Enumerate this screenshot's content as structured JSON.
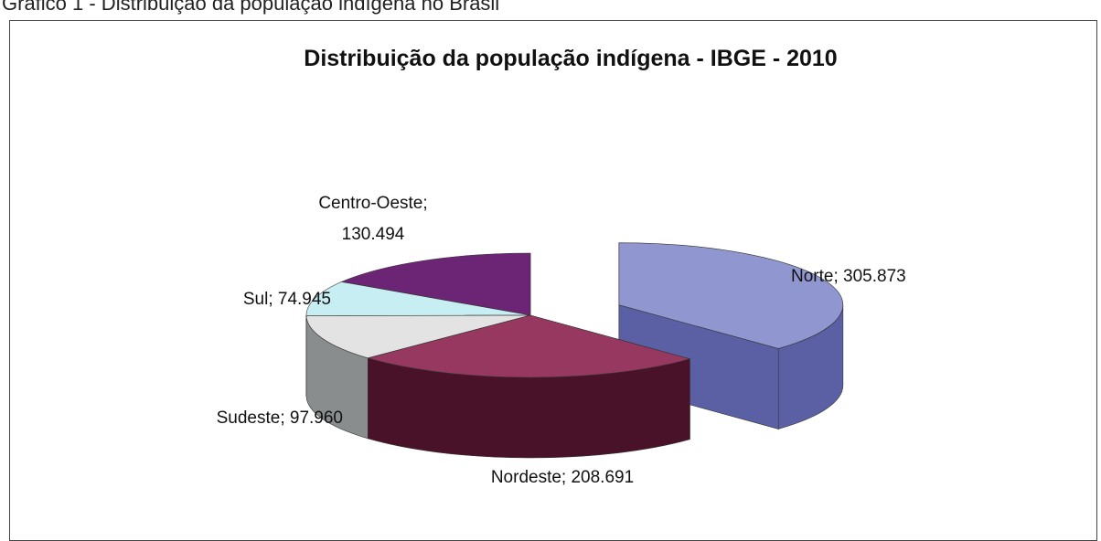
{
  "caption": "Gráfico 1 - Distribuição da população indígena no Brasil",
  "chart_data": {
    "type": "pie",
    "title": "Distribuição da população indígena - IBGE - 2010",
    "categories": [
      "Norte",
      "Nordeste",
      "Sudeste",
      "Sul",
      "Centro-Oeste"
    ],
    "values": [
      305873,
      208691,
      97960,
      74945,
      130494
    ],
    "data_labels": [
      [
        "Norte; 305.873"
      ],
      [
        "Nordeste; 208.691"
      ],
      [
        "Sudeste; 97.960"
      ],
      [
        "Sul; 74.945"
      ],
      [
        "Centro-Oeste;",
        "130.494"
      ]
    ],
    "colors": {
      "Norte": {
        "top": "#9096cf",
        "side": "#5b60a4"
      },
      "Nordeste": {
        "top": "#96385f",
        "side": "#4a1228"
      },
      "Sudeste": {
        "top": "#e3e3e3",
        "side": "#8a8d8e"
      },
      "Sul": {
        "top": "#c7eef2",
        "side": "#5e8a88"
      },
      "Centro-Oeste": {
        "top": "#6c2474",
        "side": "#3a0c40"
      }
    },
    "exploded": [
      "Norte"
    ],
    "style": "3d"
  }
}
